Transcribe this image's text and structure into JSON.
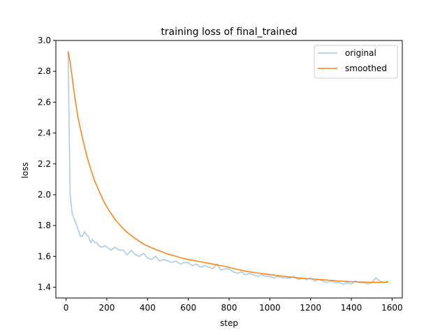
{
  "chart_data": {
    "type": "line",
    "title": "training loss of final_trained",
    "xlabel": "step",
    "ylabel": "loss",
    "xlim": [
      -50,
      1650
    ],
    "ylim": [
      1.33,
      3.0
    ],
    "xticks": [
      0,
      200,
      400,
      600,
      800,
      1000,
      1200,
      1400,
      1600
    ],
    "yticks": [
      1.4,
      1.6,
      1.8,
      2.0,
      2.2,
      2.4,
      2.6,
      2.8,
      3.0
    ],
    "xtick_labels": [
      "0",
      "200",
      "400",
      "600",
      "800",
      "1000",
      "1200",
      "1400",
      "1600"
    ],
    "ytick_labels": [
      "1.4",
      "1.6",
      "1.8",
      "2.0",
      "2.2",
      "2.4",
      "2.6",
      "2.8",
      "3.0"
    ],
    "legend_position": "upper right",
    "grid": false,
    "series": [
      {
        "name": "original",
        "color": "#1f77b4",
        "opacity": 0.4,
        "x": [
          10,
          20,
          30,
          40,
          50,
          60,
          70,
          80,
          90,
          100,
          110,
          120,
          130,
          140,
          150,
          160,
          170,
          180,
          190,
          200,
          220,
          240,
          260,
          280,
          300,
          320,
          340,
          360,
          380,
          400,
          420,
          440,
          460,
          480,
          500,
          520,
          540,
          560,
          580,
          600,
          620,
          640,
          660,
          680,
          700,
          720,
          740,
          760,
          780,
          800,
          820,
          840,
          860,
          880,
          900,
          920,
          940,
          960,
          980,
          1000,
          1020,
          1040,
          1060,
          1080,
          1100,
          1120,
          1140,
          1160,
          1180,
          1200,
          1220,
          1240,
          1260,
          1280,
          1300,
          1320,
          1340,
          1360,
          1380,
          1400,
          1420,
          1440,
          1460,
          1480,
          1500,
          1520,
          1540,
          1560,
          1580
        ],
        "y": [
          2.93,
          2.0,
          1.88,
          1.84,
          1.81,
          1.77,
          1.73,
          1.73,
          1.76,
          1.74,
          1.73,
          1.69,
          1.71,
          1.69,
          1.69,
          1.67,
          1.66,
          1.66,
          1.67,
          1.66,
          1.64,
          1.66,
          1.64,
          1.64,
          1.61,
          1.64,
          1.61,
          1.6,
          1.62,
          1.59,
          1.58,
          1.6,
          1.57,
          1.58,
          1.57,
          1.56,
          1.57,
          1.55,
          1.56,
          1.56,
          1.54,
          1.55,
          1.53,
          1.54,
          1.53,
          1.52,
          1.55,
          1.51,
          1.52,
          1.52,
          1.5,
          1.49,
          1.5,
          1.48,
          1.49,
          1.48,
          1.47,
          1.48,
          1.47,
          1.47,
          1.46,
          1.47,
          1.46,
          1.46,
          1.46,
          1.47,
          1.45,
          1.46,
          1.45,
          1.46,
          1.44,
          1.45,
          1.44,
          1.43,
          1.44,
          1.43,
          1.43,
          1.42,
          1.43,
          1.42,
          1.44,
          1.43,
          1.43,
          1.42,
          1.43,
          1.46,
          1.44,
          1.43,
          1.44
        ]
      },
      {
        "name": "smoothed",
        "color": "#ff7f0e",
        "opacity": 1,
        "x": [
          10,
          20,
          40,
          60,
          80,
          100,
          120,
          140,
          160,
          180,
          200,
          220,
          240,
          260,
          280,
          300,
          340,
          380,
          420,
          460,
          500,
          540,
          580,
          620,
          660,
          700,
          740,
          780,
          820,
          860,
          900,
          940,
          980,
          1020,
          1060,
          1100,
          1140,
          1180,
          1220,
          1260,
          1300,
          1340,
          1380,
          1420,
          1460,
          1500,
          1540,
          1580
        ],
        "y": [
          2.93,
          2.86,
          2.66,
          2.49,
          2.37,
          2.26,
          2.17,
          2.09,
          2.03,
          1.97,
          1.92,
          1.88,
          1.84,
          1.81,
          1.78,
          1.755,
          1.715,
          1.68,
          1.655,
          1.635,
          1.615,
          1.6,
          1.585,
          1.575,
          1.565,
          1.555,
          1.545,
          1.535,
          1.522,
          1.51,
          1.5,
          1.492,
          1.485,
          1.478,
          1.472,
          1.466,
          1.46,
          1.456,
          1.452,
          1.448,
          1.444,
          1.44,
          1.437,
          1.435,
          1.433,
          1.432,
          1.432,
          1.433
        ]
      }
    ]
  }
}
